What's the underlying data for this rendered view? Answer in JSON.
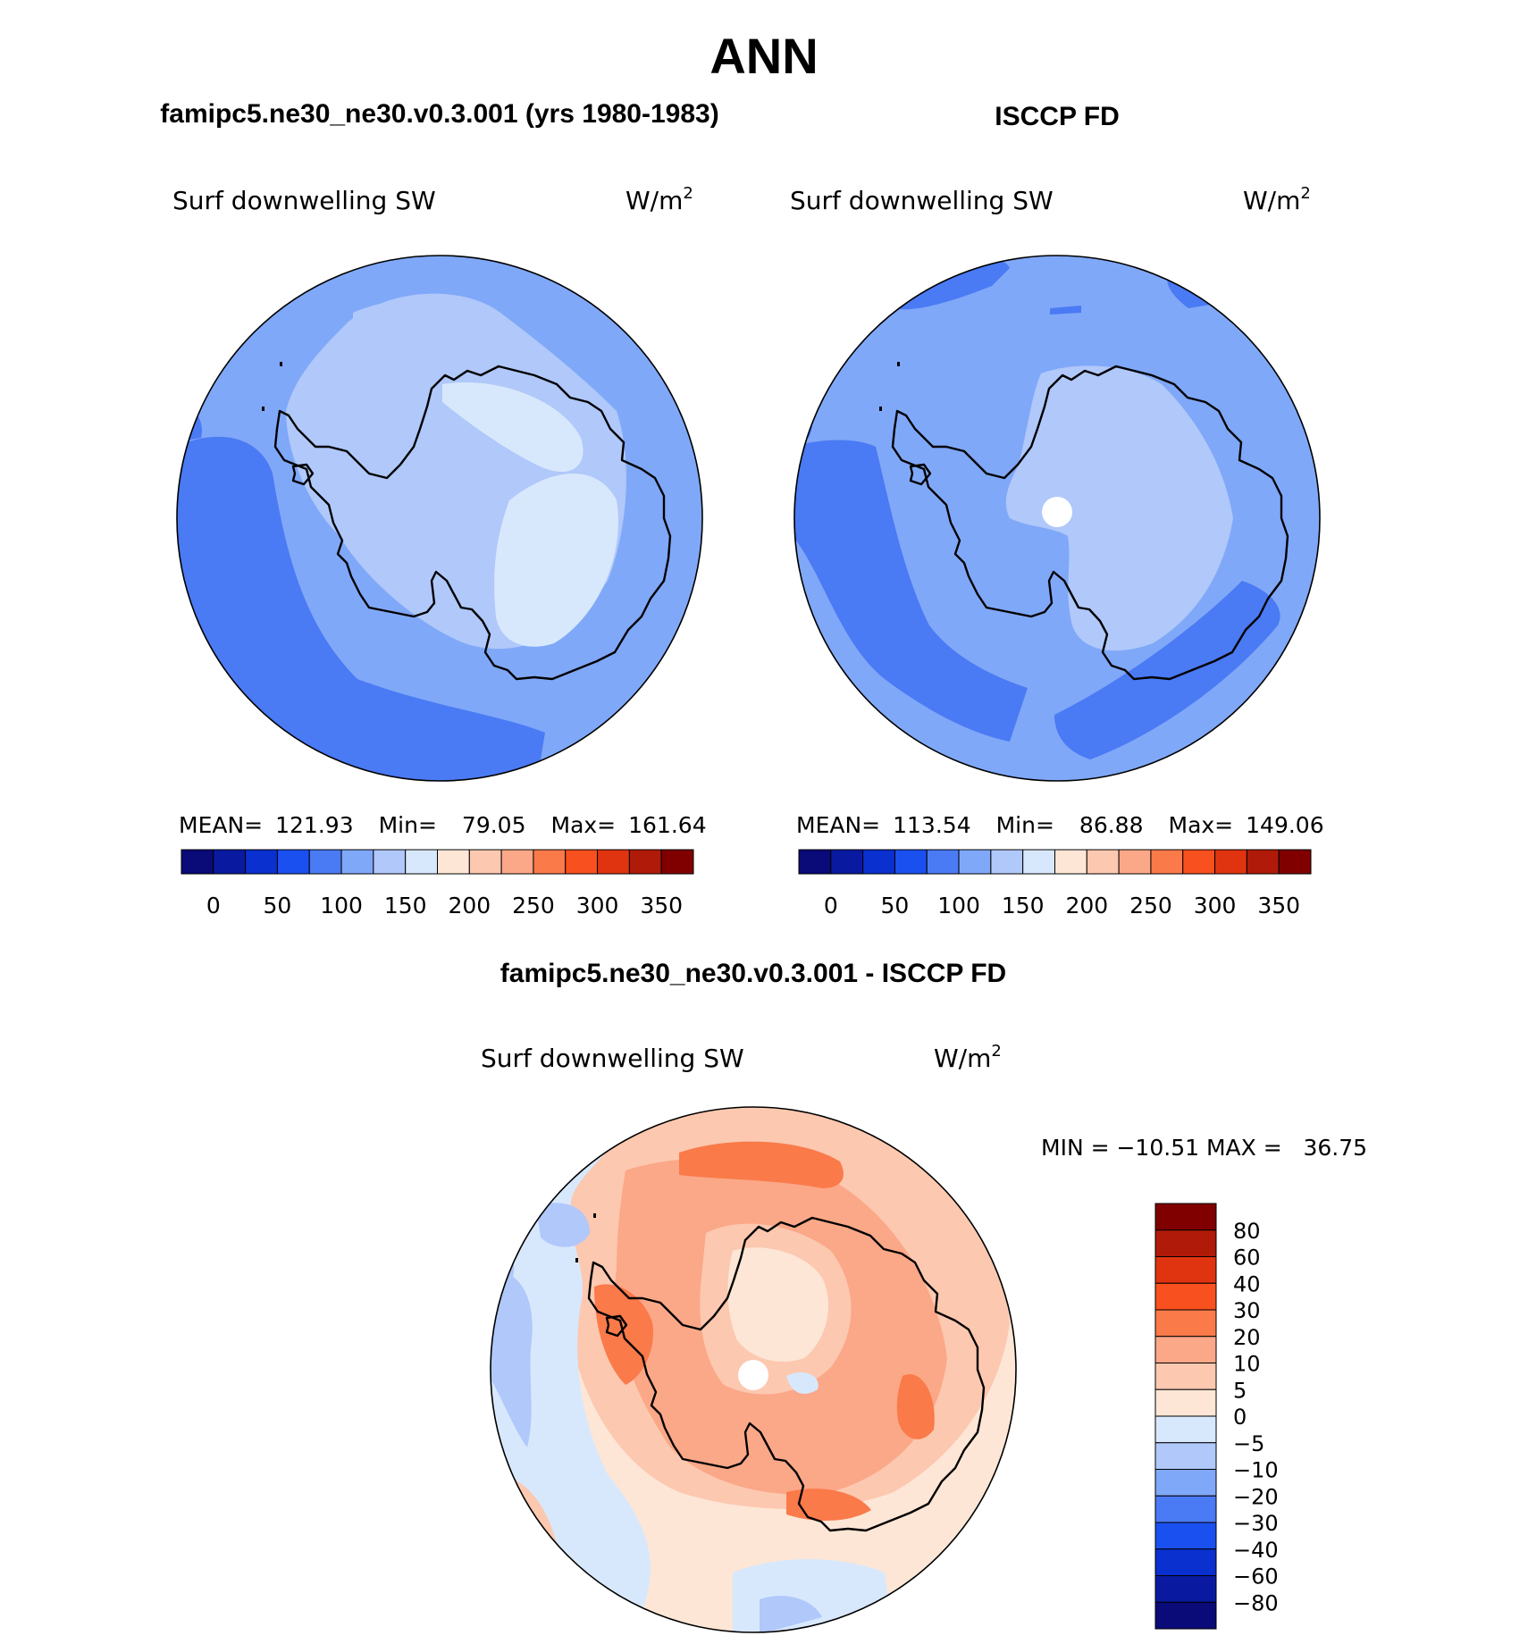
{
  "chart_data": {
    "type": "heatmap",
    "title": "ANN",
    "panels": [
      {
        "id": "model",
        "title": "famipc5.ne30_ne30.v0.3.001 (yrs 1980-1983)",
        "variable": "Surf downwelling SW",
        "units": "W/m",
        "units_exp": "2",
        "stats": {
          "mean_label": "MEAN=",
          "mean": "121.93",
          "min_label": "Min=",
          "min": "79.05",
          "max_label": "Max=",
          "max": "161.64"
        },
        "colorbar_ticks": [
          "0",
          "50",
          "100",
          "150",
          "200",
          "250",
          "300",
          "350"
        ]
      },
      {
        "id": "obs",
        "title": "ISCCP FD",
        "variable": "Surf downwelling SW",
        "units": "W/m",
        "units_exp": "2",
        "stats": {
          "mean_label": "MEAN=",
          "mean": "113.54",
          "min_label": "Min=",
          "min": "86.88",
          "max_label": "Max=",
          "max": "149.06"
        },
        "colorbar_ticks": [
          "0",
          "50",
          "100",
          "150",
          "200",
          "250",
          "300",
          "350"
        ]
      },
      {
        "id": "diff",
        "title": "famipc5.ne30_ne30.v0.3.001 - ISCCP FD",
        "variable": "Surf downwelling SW",
        "units": "W/m",
        "units_exp": "2",
        "minmax_text": "MIN = −10.51 MAX =   36.75",
        "colorbar_labels": [
          "80",
          "60",
          "40",
          "30",
          "20",
          "10",
          "5",
          "0",
          "−5",
          "−10",
          "−20",
          "−30",
          "−40",
          "−60",
          "−80"
        ]
      }
    ],
    "colors": {
      "abs_scale": [
        "#0a0a78",
        "#0a1aa0",
        "#0a30d0",
        "#1a50f0",
        "#4a7af4",
        "#80a8f8",
        "#b0c8fa",
        "#d8e8fc",
        "#fde6d6",
        "#fcc8b0",
        "#fba888",
        "#fa7a4a",
        "#f8501e",
        "#e03410",
        "#b01a08",
        "#800000"
      ],
      "diff_scale": [
        "#800000",
        "#b01a08",
        "#e03410",
        "#f8501e",
        "#fa7a4a",
        "#fba888",
        "#fcc8b0",
        "#fde6d6",
        "#d8e8fc",
        "#b0c8fa",
        "#80a8f8",
        "#4a7af4",
        "#1a50f0",
        "#0a30d0",
        "#0a1aa0",
        "#0a0a78"
      ]
    }
  }
}
